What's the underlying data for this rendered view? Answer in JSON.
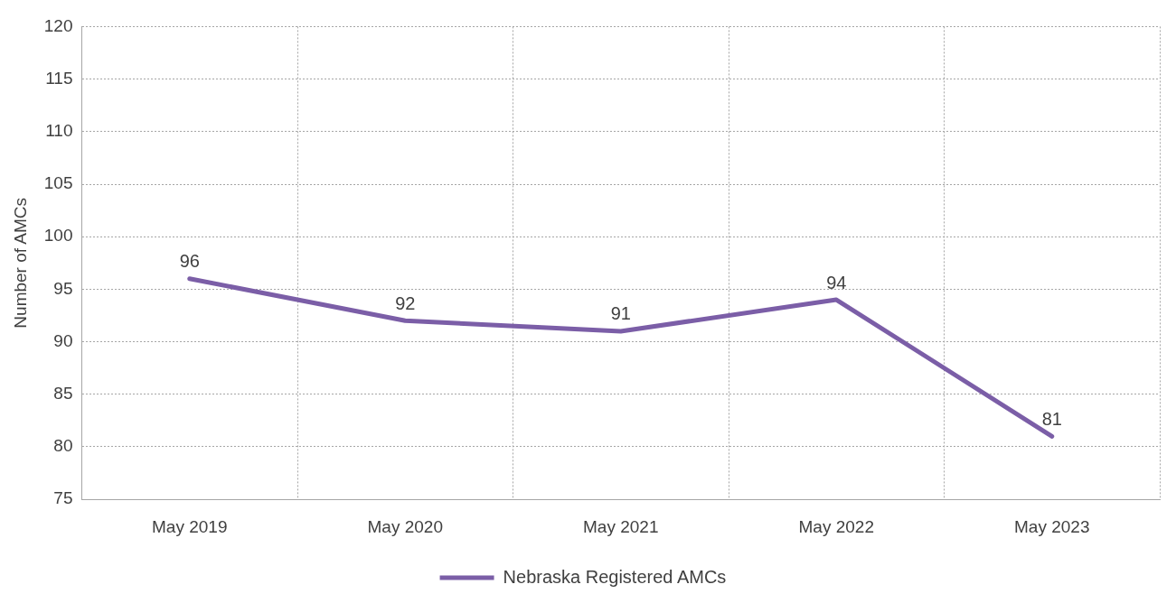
{
  "chart_data": {
    "type": "line",
    "ylabel": "Number of AMCs",
    "categories": [
      "May 2019",
      "May 2020",
      "May 2021",
      "May 2022",
      "May 2023"
    ],
    "series": [
      {
        "name": "Nebraska Registered AMCs",
        "color": "#7b5ea7",
        "values": [
          96,
          92,
          91,
          94,
          81
        ]
      }
    ],
    "ylim": [
      75,
      120
    ],
    "yticks": [
      75,
      80,
      85,
      90,
      95,
      100,
      105,
      110,
      115,
      120
    ],
    "grid": true,
    "legend": "bottom",
    "data_labels": true,
    "marker": "none",
    "line_style": "solid"
  }
}
